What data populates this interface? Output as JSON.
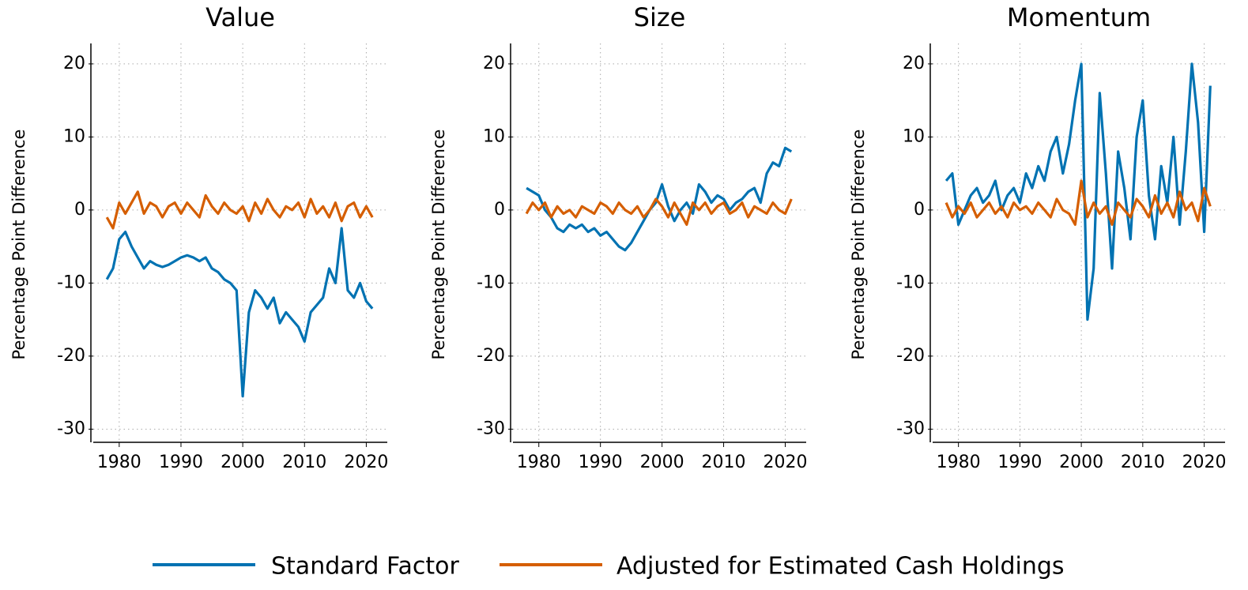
{
  "chart_data": [
    {
      "type": "line",
      "title": "Value",
      "ylabel": "Percentage Point Difference",
      "x": [
        1978,
        1979,
        1980,
        1981,
        1982,
        1983,
        1984,
        1985,
        1986,
        1987,
        1988,
        1989,
        1990,
        1991,
        1992,
        1993,
        1994,
        1995,
        1996,
        1997,
        1998,
        1999,
        2000,
        2001,
        2002,
        2003,
        2004,
        2005,
        2006,
        2007,
        2008,
        2009,
        2010,
        2011,
        2012,
        2013,
        2014,
        2015,
        2016,
        2017,
        2018,
        2019,
        2020,
        2021
      ],
      "series": [
        {
          "name": "Standard Factor",
          "color": "#0072b2",
          "values": [
            -9.5,
            -8,
            -4,
            -3,
            -5,
            -6.5,
            -8,
            -7,
            -7.5,
            -7.8,
            -7.5,
            -7,
            -6.5,
            -6.2,
            -6.5,
            -7,
            -6.5,
            -8,
            -8.5,
            -9.5,
            -10,
            -11,
            -25.5,
            -14,
            -11,
            -12,
            -13.5,
            -12,
            -15.5,
            -14,
            -15,
            -16,
            -18,
            -14,
            -13,
            -12,
            -8,
            -10,
            -2.5,
            -11,
            -12,
            -10,
            -12.5,
            -13.5
          ]
        },
        {
          "name": "Adjusted for Estimated Cash Holdings",
          "color": "#d55e00",
          "values": [
            -1,
            -2.5,
            1,
            -0.5,
            1,
            2.5,
            -0.5,
            1,
            0.5,
            -1,
            0.5,
            1,
            -0.5,
            1,
            0,
            -1,
            2,
            0.5,
            -0.5,
            1,
            0,
            -0.5,
            0.5,
            -1.5,
            1,
            -0.5,
            1.5,
            0,
            -1,
            0.5,
            0,
            1,
            -1,
            1.5,
            -0.5,
            0.5,
            -1,
            1,
            -1.5,
            0.5,
            1,
            -1,
            0.5,
            -1
          ]
        }
      ],
      "xlim": [
        1975.8,
        2023.4
      ],
      "ylim": [
        -31.8,
        22.8
      ],
      "xticks": [
        1980,
        1990,
        2000,
        2010,
        2020
      ],
      "yticks": [
        -30,
        -20,
        -10,
        0,
        10,
        20
      ],
      "grid": true
    },
    {
      "type": "line",
      "title": "Size",
      "ylabel": "Percentage Point Difference",
      "x": [
        1978,
        1979,
        1980,
        1981,
        1982,
        1983,
        1984,
        1985,
        1986,
        1987,
        1988,
        1989,
        1990,
        1991,
        1992,
        1993,
        1994,
        1995,
        1996,
        1997,
        1998,
        1999,
        2000,
        2001,
        2002,
        2003,
        2004,
        2005,
        2006,
        2007,
        2008,
        2009,
        2010,
        2011,
        2012,
        2013,
        2014,
        2015,
        2016,
        2017,
        2018,
        2019,
        2020,
        2021
      ],
      "series": [
        {
          "name": "Standard Factor",
          "color": "#0072b2",
          "values": [
            3,
            2.5,
            2,
            0,
            -1,
            -2.5,
            -3,
            -2,
            -2.5,
            -2,
            -3,
            -2.5,
            -3.5,
            -3,
            -4,
            -5,
            -5.5,
            -4.5,
            -3,
            -1.5,
            0,
            1,
            3.5,
            0.5,
            -1.5,
            0,
            1,
            -0.5,
            3.5,
            2.5,
            1,
            2,
            1.5,
            0,
            1,
            1.5,
            2.5,
            3,
            1,
            5,
            6.5,
            6,
            8.5,
            8
          ]
        },
        {
          "name": "Adjusted for Estimated Cash Holdings",
          "color": "#d55e00",
          "values": [
            -0.5,
            1,
            0,
            1,
            -1,
            0.5,
            -0.5,
            0,
            -1,
            0.5,
            0,
            -0.5,
            1,
            0.5,
            -0.5,
            1,
            0,
            -0.5,
            0.5,
            -1,
            0,
            1.5,
            0.5,
            -1,
            1,
            -0.5,
            -2,
            1,
            0,
            1,
            -0.5,
            0.5,
            1,
            -0.5,
            0,
            1,
            -1,
            0.5,
            0,
            -0.5,
            1,
            0,
            -0.5,
            1.5
          ]
        }
      ],
      "xlim": [
        1975.8,
        2023.4
      ],
      "ylim": [
        -31.8,
        22.8
      ],
      "xticks": [
        1980,
        1990,
        2000,
        2010,
        2020
      ],
      "yticks": [
        -30,
        -20,
        -10,
        0,
        10,
        20
      ],
      "grid": true
    },
    {
      "type": "line",
      "title": "Momentum",
      "ylabel": "Percentage Point Difference",
      "x": [
        1978,
        1979,
        1980,
        1981,
        1982,
        1983,
        1984,
        1985,
        1986,
        1987,
        1988,
        1989,
        1990,
        1991,
        1992,
        1993,
        1994,
        1995,
        1996,
        1997,
        1998,
        1999,
        2000,
        2001,
        2002,
        2003,
        2004,
        2005,
        2006,
        2007,
        2008,
        2009,
        2010,
        2011,
        2012,
        2013,
        2014,
        2015,
        2016,
        2017,
        2018,
        2019,
        2020,
        2021
      ],
      "series": [
        {
          "name": "Standard Factor",
          "color": "#0072b2",
          "values": [
            4,
            5,
            -2,
            0,
            2,
            3,
            1,
            2,
            4,
            0,
            2,
            3,
            1,
            5,
            3,
            6,
            4,
            8,
            10,
            5,
            9,
            15,
            20,
            -15,
            -8,
            16,
            5,
            -8,
            8,
            3,
            -4,
            10,
            15,
            2,
            -4,
            6,
            1,
            10,
            -2,
            8,
            20,
            12,
            -3,
            17
          ]
        },
        {
          "name": "Adjusted for Estimated Cash Holdings",
          "color": "#d55e00",
          "values": [
            1,
            -1,
            0.5,
            -0.5,
            1,
            -1,
            0,
            1,
            -0.5,
            0.5,
            -1,
            1,
            0,
            0.5,
            -0.5,
            1,
            0,
            -1,
            1.5,
            0,
            -0.5,
            -2,
            4,
            -1,
            1,
            -0.5,
            0.5,
            -2,
            1,
            0,
            -1,
            1.5,
            0.5,
            -1,
            2,
            -0.5,
            1,
            -1,
            2.5,
            0,
            1,
            -1.5,
            3,
            0.5
          ]
        }
      ],
      "xlim": [
        1975.8,
        2023.4
      ],
      "ylim": [
        -31.8,
        22.8
      ],
      "xticks": [
        1980,
        1990,
        2000,
        2010,
        2020
      ],
      "yticks": [
        -30,
        -20,
        -10,
        0,
        10,
        20
      ],
      "grid": true
    }
  ]
}
